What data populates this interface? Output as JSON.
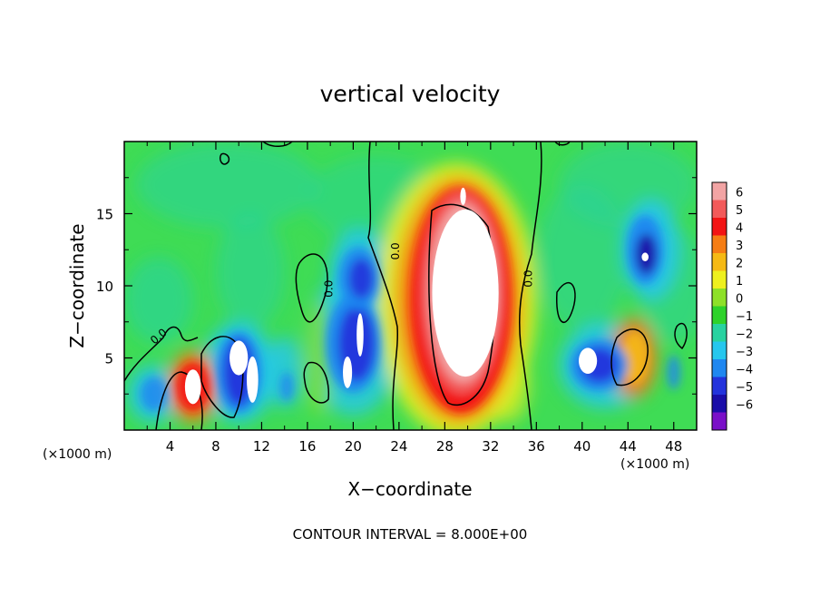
{
  "chart_data": {
    "type": "heatmap",
    "title": "vertical velocity",
    "xlabel": "X−coordinate",
    "ylabel": "Z−coordinate",
    "x_unit_left": "(×1000 m)",
    "x_unit_right": "(×1000 m)",
    "footer": "CONTOUR INTERVAL = 8.000E+00",
    "xlim": [
      0,
      50
    ],
    "ylim": [
      0,
      20
    ],
    "x_ticks": [
      4,
      8,
      12,
      16,
      20,
      24,
      28,
      32,
      36,
      40,
      44,
      48
    ],
    "y_ticks": [
      5,
      10,
      15
    ],
    "contour_labels": [
      {
        "text": "0.0",
        "x": 3.2,
        "y": 6.3,
        "rot": -40
      },
      {
        "text": "0.0",
        "x": 18.2,
        "y": 9.8,
        "rot": -90
      },
      {
        "text": "0.0",
        "x": 24.0,
        "y": 12.4,
        "rot": -90
      },
      {
        "text": "0.0",
        "x": 35.6,
        "y": 10.5,
        "rot": -90
      }
    ],
    "colorbar": {
      "levels": [
        6,
        5,
        4,
        3,
        2,
        1,
        0,
        -1,
        -2,
        -3,
        -4,
        -5,
        -6
      ],
      "colors": [
        "#f2a4a4",
        "#f25a5a",
        "#f21414",
        "#f57d14",
        "#f5b914",
        "#eef01e",
        "#8ee028",
        "#2ed22a",
        "#28d2a0",
        "#26c7ee",
        "#1f87f0",
        "#2333dc",
        "#1a0da8",
        "#7a10c8"
      ]
    }
  }
}
